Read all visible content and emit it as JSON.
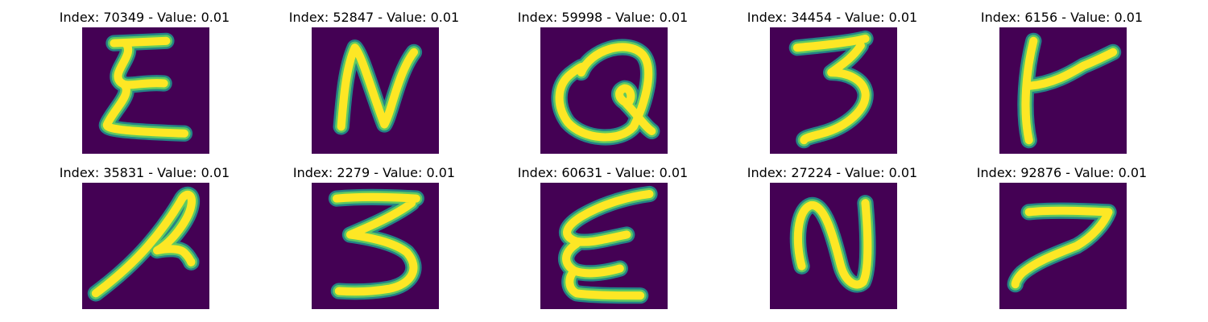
{
  "colors": {
    "background": "#440154",
    "stroke_edge": "#21918c",
    "stroke_mid": "#5ec962",
    "stroke_core": "#fde725"
  },
  "samples": [
    {
      "title": "Index: 70349 - Value: 0.01",
      "glyph": "E"
    },
    {
      "title": "Index: 52847 - Value: 0.01",
      "glyph": "N"
    },
    {
      "title": "Index: 59998 - Value: 0.01",
      "glyph": "Q"
    },
    {
      "title": "Index: 34454 - Value: 0.01",
      "glyph": "3"
    },
    {
      "title": "Index: 6156 - Value: 0.01",
      "glyph": "t"
    },
    {
      "title": "Index: 35831 - Value: 0.01",
      "glyph": "f"
    },
    {
      "title": "Index: 2279 - Value: 0.01",
      "glyph": "3"
    },
    {
      "title": "Index: 60631 - Value: 0.01",
      "glyph": "E"
    },
    {
      "title": "Index: 27224 - Value: 0.01",
      "glyph": "N"
    },
    {
      "title": "Index: 92876 - Value: 0.01",
      "glyph": "7"
    }
  ]
}
